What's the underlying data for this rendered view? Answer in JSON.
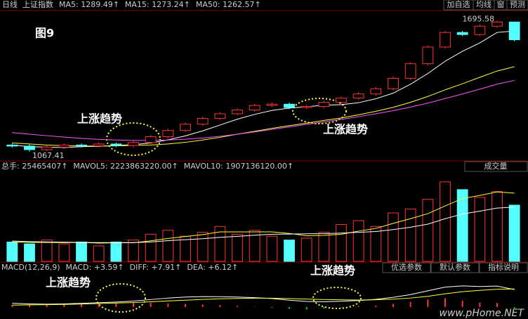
{
  "toolbar": {
    "period": "日线",
    "index": "上证指数",
    "buttons": [
      "加自选",
      "均线",
      "窗",
      "预测"
    ]
  },
  "watermark": "www.pHome.NET",
  "chart_data": [
    {
      "type": "candlestick",
      "title": "图9",
      "ylim": [
        1034,
        1735
      ],
      "up_color": "#ff3232",
      "down_color": "#54ffff",
      "annotations": [
        "上涨趋势",
        "上涨趋势"
      ],
      "open": [
        1100,
        1095,
        1078,
        1090,
        1100,
        1096,
        1105,
        1098,
        1112,
        1140,
        1170,
        1200,
        1228,
        1250,
        1268,
        1290,
        1296,
        1280,
        1285,
        1305,
        1325,
        1345,
        1370,
        1420,
        1490,
        1570,
        1640,
        1630,
        1670,
        1690
      ],
      "high": [
        1108,
        1103,
        1098,
        1108,
        1108,
        1113,
        1113,
        1120,
        1148,
        1178,
        1208,
        1236,
        1258,
        1276,
        1298,
        1304,
        1304,
        1293,
        1313,
        1333,
        1353,
        1378,
        1428,
        1498,
        1578,
        1648,
        1648,
        1678,
        1695.58,
        1692
      ],
      "low": [
        1087,
        1067.41,
        1070,
        1082,
        1088,
        1088,
        1090,
        1090,
        1104,
        1132,
        1162,
        1192,
        1220,
        1242,
        1260,
        1282,
        1272,
        1272,
        1277,
        1297,
        1317,
        1337,
        1362,
        1412,
        1482,
        1562,
        1622,
        1622,
        1662,
        1597
      ],
      "close": [
        1095,
        1078,
        1090,
        1100,
        1096,
        1105,
        1098,
        1112,
        1140,
        1170,
        1200,
        1228,
        1250,
        1268,
        1290,
        1296,
        1280,
        1285,
        1305,
        1325,
        1345,
        1370,
        1420,
        1490,
        1570,
        1640,
        1630,
        1670,
        1690,
        1605
      ],
      "lines": [
        {
          "legend": "MA5: 1289.49↑",
          "color": "#ffffff",
          "values": [
            1100,
            1092,
            1090,
            1088,
            1092,
            1094,
            1098,
            1102,
            1110,
            1125,
            1144,
            1168,
            1196,
            1224,
            1247,
            1266,
            1277,
            1284,
            1291,
            1294,
            1303,
            1322,
            1349,
            1392,
            1443,
            1502,
            1550,
            1590,
            1640,
            1647
          ]
        },
        {
          "legend": "MA15: 1273.24↑",
          "color": "#ffff33",
          "values": [
            1110,
            1105,
            1100,
            1097,
            1095,
            1095,
            1096,
            1098,
            1100,
            1105,
            1113,
            1124,
            1137,
            1152,
            1166,
            1180,
            1193,
            1205,
            1218,
            1230,
            1245,
            1262,
            1281,
            1305,
            1333,
            1365,
            1394,
            1425,
            1455,
            1476
          ]
        },
        {
          "legend": "MA50: 1262.57↑",
          "color": "#ff55ff",
          "values": [
            1160,
            1152,
            1145,
            1138,
            1132,
            1127,
            1124,
            1122,
            1122,
            1124,
            1128,
            1134,
            1142,
            1152,
            1163,
            1175,
            1187,
            1199,
            1211,
            1223,
            1236,
            1250,
            1265,
            1282,
            1301,
            1323,
            1345,
            1368,
            1392,
            1410
          ]
        }
      ]
    },
    {
      "type": "bar",
      "header": "总手: 25465407↑",
      "header_color": "#ff3232",
      "button": "成交量",
      "ylim": [
        0,
        4600000000.0
      ],
      "values": [
        1000000000.0,
        900000000.0,
        1100000000.0,
        900000000.0,
        1000000000.0,
        800000000.0,
        1000000000.0,
        1100000000.0,
        1400000000.0,
        1600000000.0,
        1300000000.0,
        1500000000.0,
        1800000000.0,
        1400000000.0,
        1600000000.0,
        1300000000.0,
        1100000000.0,
        1200000000.0,
        1500000000.0,
        1900000000.0,
        2100000000.0,
        1800000000.0,
        2500000000.0,
        2700000000.0,
        3200000000.0,
        4100000000.0,
        3700000000.0,
        3300000000.0,
        3600000000.0,
        2900000000.0
      ],
      "lines": [
        {
          "legend": "MAVOL5: 2223863220.00↑",
          "color": "#ffff33",
          "values": [
            1000000000.0,
            980000000.0,
            980000000.0,
            970000000.0,
            980000000.0,
            940000000.0,
            960000000.0,
            960000000.0,
            1060000000.0,
            1180000000.0,
            1280000000.0,
            1380000000.0,
            1520000000.0,
            1520000000.0,
            1520000000.0,
            1520000000.0,
            1440000000.0,
            1320000000.0,
            1340000000.0,
            1400000000.0,
            1560000000.0,
            1700000000.0,
            1960000000.0,
            2200000000.0,
            2460000000.0,
            2860000000.0,
            3240000000.0,
            3400000000.0,
            3580000000.0,
            3520000000.0
          ]
        },
        {
          "legend": "MAVOL10: 1907136120.00↑",
          "color": "#ffffff",
          "values": [
            1050000000.0,
            1020000000.0,
            1000000000.0,
            990000000.0,
            980000000.0,
            970000000.0,
            970000000.0,
            970000000.0,
            1000000000.0,
            1070000000.0,
            1120000000.0,
            1170000000.0,
            1240000000.0,
            1290000000.0,
            1350000000.0,
            1400000000.0,
            1410000000.0,
            1420000000.0,
            1430000000.0,
            1460000000.0,
            1500000000.0,
            1540000000.0,
            1640000000.0,
            1760000000.0,
            1920000000.0,
            2200000000.0,
            2440000000.0,
            2590000000.0,
            2750000000.0,
            2800000000.0
          ]
        }
      ]
    },
    {
      "type": "macd",
      "header": "MACD(12,26,9)",
      "header_color": "#cccccc",
      "buttons": [
        "优选参数",
        "默认参数",
        "指标说明"
      ],
      "annotations": [
        "上涨趋势",
        "上涨趋势"
      ],
      "ylim": [
        -8.5,
        26.5
      ],
      "up_color": "#ff3232",
      "down_color": "#00cc00",
      "values": [
        1.5,
        1.8,
        2,
        2.2,
        2.5,
        2.8,
        3,
        3.2,
        3.4,
        3,
        2.5,
        2,
        1.5,
        0.8,
        0.2,
        -0.5,
        -1.5,
        -2,
        -1.2,
        -0.3,
        0.8,
        1.2,
        2.5,
        4,
        6,
        7,
        5,
        3.5,
        3.2,
        -2
      ],
      "hist_legend": "MACD: +3.59↑",
      "hist_color": "#ff3232",
      "lines": [
        {
          "legend": "DIFF: +7.91↑",
          "color": "#ffffff",
          "values": [
            3,
            2.5,
            2.3,
            2.5,
            3,
            3.5,
            4,
            4.8,
            6,
            7.2,
            8,
            8.4,
            8.3,
            8,
            7.5,
            6.8,
            5.5,
            4.5,
            4.2,
            4.6,
            5.2,
            6.2,
            7.8,
            10,
            13,
            16,
            17,
            16.5,
            16.8,
            14
          ]
        },
        {
          "legend": "DEA: +6.12↑",
          "color": "#ffff33",
          "values": [
            1.5,
            1.7,
            1.9,
            2.1,
            2.4,
            2.8,
            3.2,
            3.6,
            4.2,
            4.9,
            5.5,
            6.1,
            6.6,
            6.9,
            7.1,
            7.1,
            6.8,
            6.4,
            6.0,
            5.8,
            5.6,
            5.8,
            6.3,
            7.2,
            8.6,
            10.6,
            12.3,
            13.4,
            14.3,
            14.5
          ]
        }
      ]
    }
  ]
}
